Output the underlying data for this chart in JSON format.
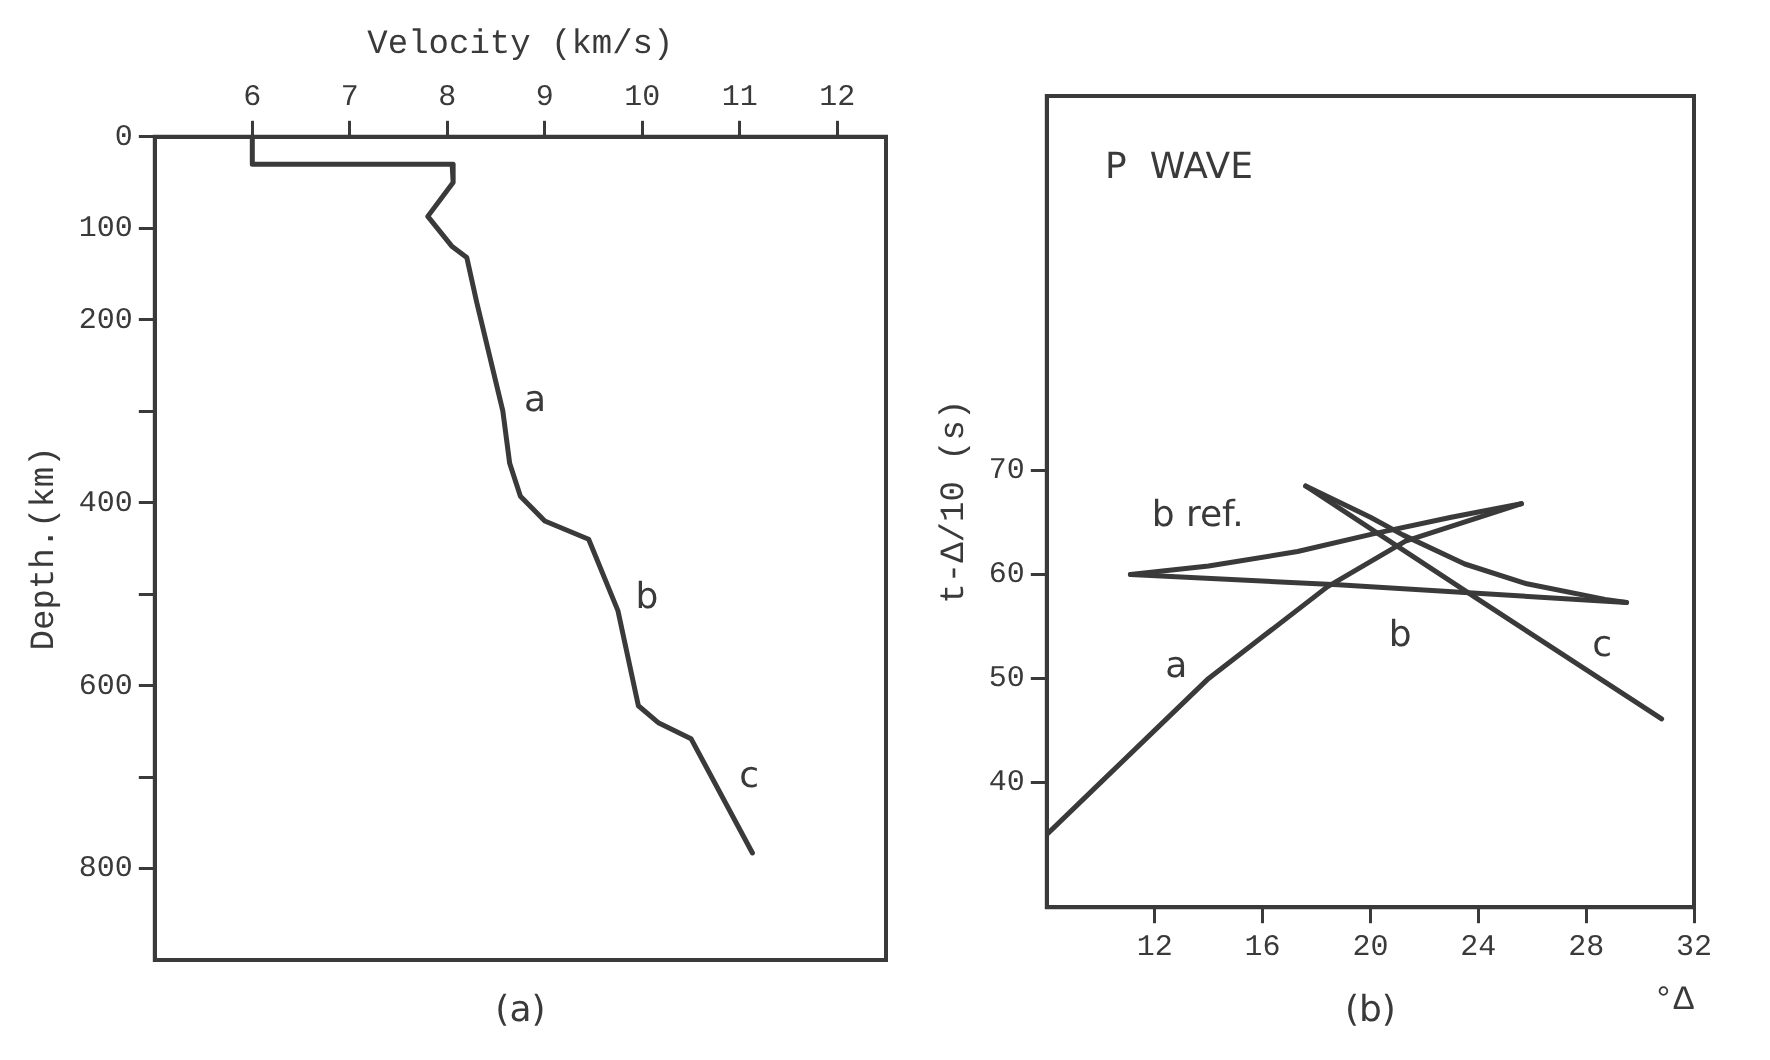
{
  "chart_data": [
    {
      "type": "line",
      "xlabel": "Velocity (km/s)",
      "ylabel": "Depth.(km)",
      "xlim": [
        5,
        12.5
      ],
      "xticks": [
        6,
        7,
        8,
        9,
        10,
        11,
        12
      ],
      "ylim": [
        900,
        0
      ],
      "yticks": [
        0,
        100,
        200,
        {
          "value": 300,
          "label": null
        },
        400,
        {
          "value": 500,
          "label": null
        },
        600,
        {
          "value": 700,
          "label": null
        },
        800
      ],
      "series": [
        {
          "color": "#3a3a3a",
          "x": [
            6,
            6,
            8.05,
            8.06,
            7.8,
            8.05,
            8.2,
            8.3,
            8.57,
            8.64,
            8.75,
            9.0,
            9.45,
            9.75,
            9.96,
            10.17,
            10.5,
            11.13
          ],
          "values": [
            0,
            30,
            30,
            50,
            87,
            120,
            132,
            180,
            300,
            357,
            393,
            420,
            440,
            518,
            622,
            641,
            658,
            783
          ]
        }
      ],
      "annotations": [
        "a",
        "b",
        "c",
        "(a)"
      ]
    },
    {
      "type": "line",
      "xlabel": "°Δ",
      "ylabel": "t-Δ/10 (s)",
      "xlim": [
        8,
        32
      ],
      "xticks": [
        12,
        16,
        20,
        24,
        28,
        32
      ],
      "ylim": [
        28,
        106
      ],
      "yticks": [
        40,
        50,
        60,
        70
      ],
      "series": [
        {
          "color": "#3a3a3a",
          "x": [
            8,
            10,
            12,
            14,
            16,
            18.4,
            21.3,
            25.6
          ],
          "values": [
            35,
            40,
            45,
            50,
            54,
            58.8,
            63.2,
            66.8
          ]
        },
        {
          "color": "#3a3a3a",
          "x": [
            11.1,
            14,
            17.3,
            20.1,
            23,
            25.6
          ],
          "values": [
            60,
            60.8,
            62.2,
            63.9,
            65.5,
            66.8
          ]
        },
        {
          "color": "#3a3a3a",
          "x": [
            11.1,
            18.8,
            29.5
          ],
          "values": [
            60,
            59,
            57.3
          ]
        },
        {
          "color": "#3a3a3a",
          "x": [
            17.6,
            24,
            30.8
          ],
          "values": [
            68.5,
            57.6,
            46.1
          ]
        },
        {
          "color": "#3a3a3a",
          "x": [
            17.6,
            20,
            21.2,
            23.5,
            25.8,
            28.7,
            29.5
          ],
          "values": [
            68.5,
            65.5,
            63.8,
            61,
            59.1,
            57.6,
            57.3
          ]
        }
      ],
      "annotations": [
        "a",
        "b ref.",
        "b",
        "c",
        "P  WAVE",
        "(b)"
      ]
    }
  ]
}
